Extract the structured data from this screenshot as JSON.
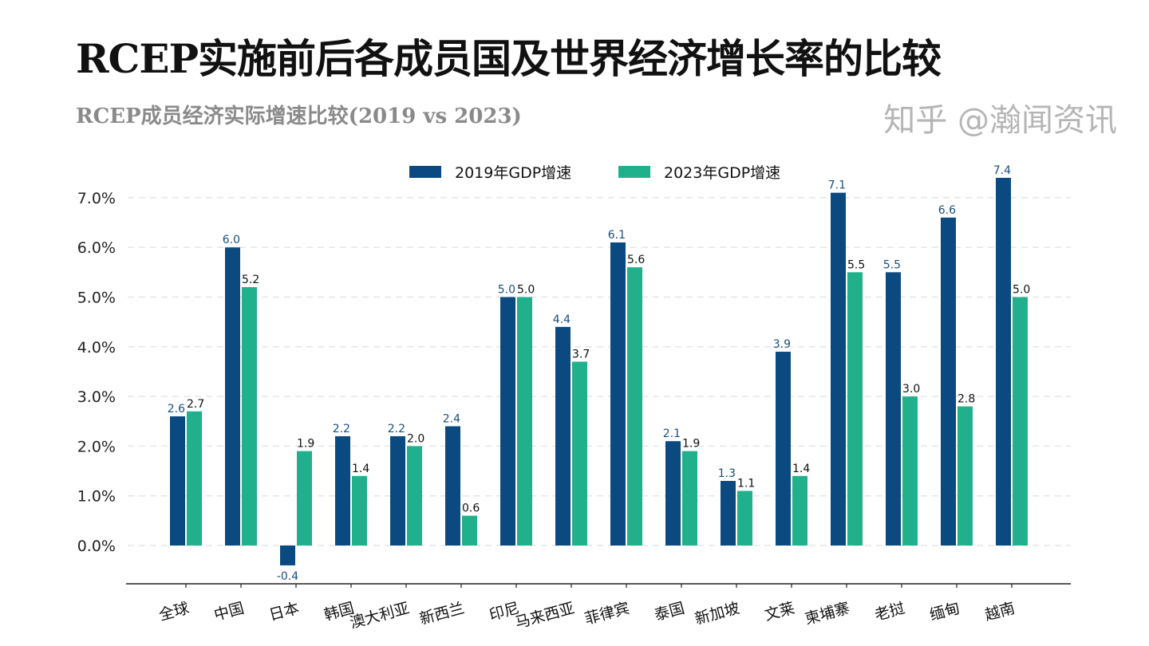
{
  "title": "RCEP实施前后各成员国及世界经济增长率的比较",
  "subtitle": "RCEP成员经济实际增速比较(2019 vs 2023)",
  "watermark": "知乎 @瀚闻资讯",
  "chart_data": {
    "type": "bar",
    "title": "RCEP实施前后各成员国及世界经济增长率的比较",
    "subtitle": "RCEP成员经济实际增速比较(2019 vs 2023)",
    "categories": [
      "全球",
      "中国",
      "日本",
      "韩国",
      "澳大利亚",
      "新西兰",
      "印尼",
      "马来西亚",
      "菲律宾",
      "泰国",
      "新加坡",
      "文莱",
      "柬埔寨",
      "老挝",
      "缅甸",
      "越南"
    ],
    "series": [
      {
        "name": "2019年GDP增速",
        "color": "#0b4a80",
        "label_color": "#1a4f7e",
        "values": [
          2.6,
          6.0,
          -0.4,
          2.2,
          2.2,
          2.4,
          5.0,
          4.4,
          6.1,
          2.1,
          1.3,
          3.9,
          7.1,
          5.5,
          6.6,
          7.4
        ]
      },
      {
        "name": "2023年GDP增速",
        "color": "#21b08c",
        "label_color": "#111111",
        "values": [
          2.7,
          5.2,
          1.9,
          1.4,
          2.0,
          0.6,
          5.0,
          3.7,
          5.6,
          1.9,
          1.1,
          1.4,
          5.5,
          3.0,
          2.8,
          5.0
        ]
      }
    ],
    "yticks": [
      "0.0%",
      "1.0%",
      "2.0%",
      "3.0%",
      "4.0%",
      "5.0%",
      "6.0%",
      "7.0%"
    ],
    "ylim": [
      -0.8,
      7.7
    ],
    "grid": true,
    "legend": "top-center"
  }
}
